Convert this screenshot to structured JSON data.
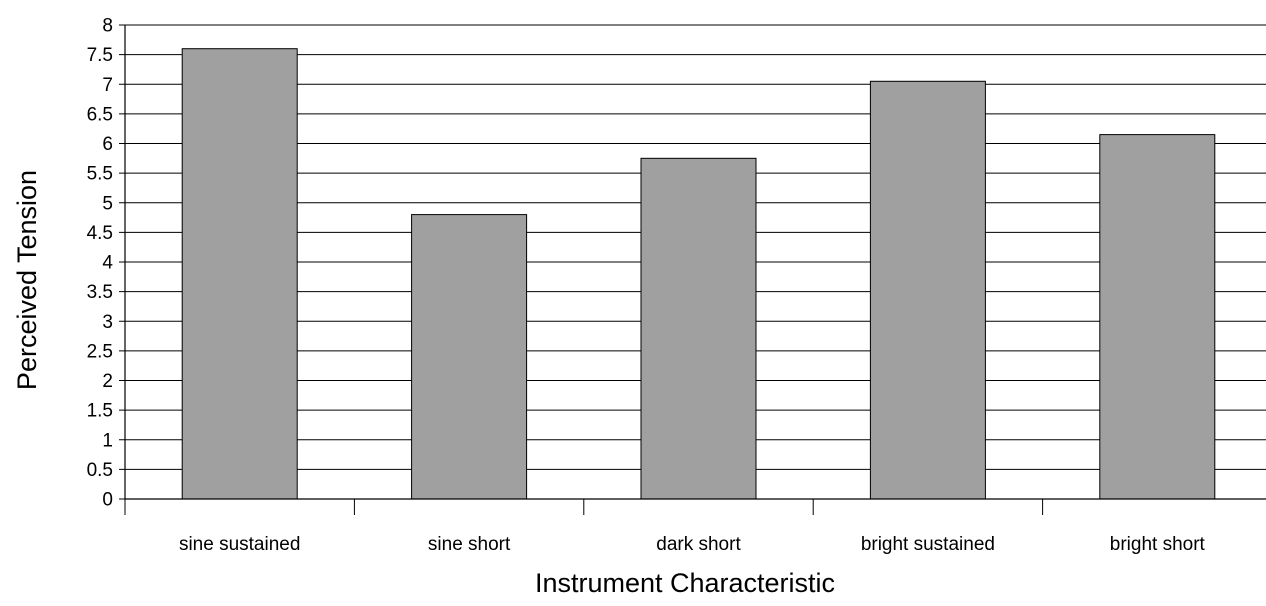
{
  "chart_data": {
    "type": "bar",
    "title": "",
    "xlabel": "Instrument Characteristic",
    "ylabel": "Perceived Tension",
    "categories": [
      "sine sustained",
      "sine short",
      "dark short",
      "bright sustained",
      "bright short"
    ],
    "values": [
      7.6,
      4.8,
      5.75,
      7.05,
      6.15
    ],
    "ylim": [
      0,
      8
    ],
    "y_ticks": [
      "0",
      "0.5",
      "1",
      "1.5",
      "2",
      "2.5",
      "3",
      "3.5",
      "4",
      "4.5",
      "5",
      "5.5",
      "6",
      "6.5",
      "7",
      "7.5",
      "8"
    ],
    "grid": true,
    "legend": "none",
    "colors": {
      "bar_fill": "#a0a0a0",
      "bar_stroke": "#000000",
      "grid": "#000000",
      "axis": "#000000"
    }
  }
}
